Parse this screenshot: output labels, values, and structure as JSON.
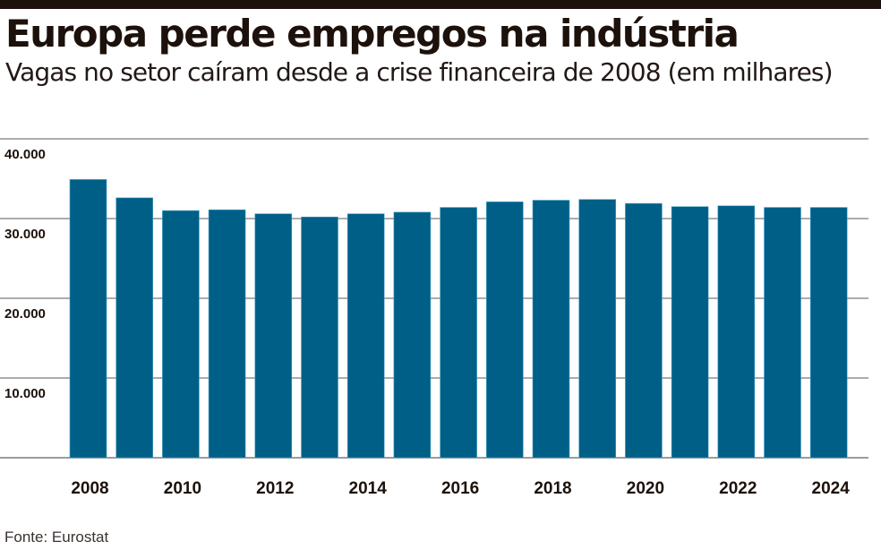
{
  "header": {
    "title": "Europa perde empregos na indústria",
    "subtitle": "Vagas no setor caíram desde a crise financeira de 2008 (em milhares)"
  },
  "footer": {
    "source": "Fonte: Eurostat"
  },
  "chart_data": {
    "type": "bar",
    "title": "Europa perde empregos na indústria",
    "subtitle": "Vagas no setor caíram desde a crise financeira de 2008 (em milhares)",
    "xlabel": "",
    "ylabel": "",
    "categories": [
      "2008",
      "2009",
      "2010",
      "2011",
      "2012",
      "2013",
      "2014",
      "2015",
      "2016",
      "2017",
      "2018",
      "2019",
      "2020",
      "2021",
      "2022",
      "2023",
      "2024"
    ],
    "values": [
      34900,
      32600,
      31000,
      31100,
      30600,
      30200,
      30600,
      30800,
      31400,
      32100,
      32300,
      32400,
      31900,
      31500,
      31600,
      31400,
      31400
    ],
    "ylim": [
      0,
      40000
    ],
    "yticks": [
      10000,
      20000,
      30000,
      40000
    ],
    "ytick_labels": [
      "10.000",
      "20.000",
      "30.000",
      "40.000"
    ],
    "xtick_labels": [
      "2008",
      "2010",
      "2012",
      "2014",
      "2016",
      "2018",
      "2020",
      "2022",
      "2024"
    ],
    "grid": true,
    "legend": "none",
    "colors": {
      "bar": "#005f87",
      "bar_edge": "#4aa3c8",
      "grid": "#7a7a7a",
      "text": "#1c110b"
    },
    "source": "Fonte: Eurostat"
  }
}
